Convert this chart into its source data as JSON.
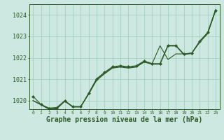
{
  "background_color": "#cce8e0",
  "grid_color": "#99ccbb",
  "line_color": "#2d5a27",
  "marker_color": "#2d5a27",
  "xlabel": "Graphe pression niveau de la mer (hPa)",
  "xlabel_fontsize": 7,
  "ytick_labels": [
    "1020",
    "1021",
    "1022",
    "1023",
    "1024"
  ],
  "ytick_vals": [
    1020,
    1021,
    1022,
    1023,
    1024
  ],
  "xtick_vals": [
    0,
    1,
    2,
    3,
    4,
    5,
    6,
    7,
    8,
    9,
    10,
    11,
    12,
    13,
    14,
    15,
    16,
    17,
    18,
    19,
    20,
    21,
    22,
    23
  ],
  "xlim": [
    -0.5,
    23.5
  ],
  "ylim": [
    1019.6,
    1024.5
  ],
  "series1_y": [
    1020.0,
    1019.82,
    1019.65,
    1019.68,
    1020.0,
    1019.72,
    1019.72,
    1020.3,
    1020.95,
    1021.25,
    1021.52,
    1021.57,
    1021.52,
    1021.57,
    1021.8,
    1021.7,
    1021.7,
    1022.55,
    1022.55,
    1022.15,
    1022.2,
    1022.75,
    1023.15,
    1024.25
  ],
  "series2_y": [
    1020.2,
    1019.82,
    1019.62,
    1019.65,
    1019.98,
    1019.72,
    1019.72,
    1020.35,
    1021.02,
    1021.32,
    1021.58,
    1021.63,
    1021.58,
    1021.63,
    1021.85,
    1021.73,
    1021.73,
    1022.58,
    1022.58,
    1022.18,
    1022.22,
    1022.78,
    1023.18,
    1024.22
  ],
  "series3_y": [
    1020.0,
    1019.8,
    1019.6,
    1019.62,
    1019.97,
    1019.7,
    1019.7,
    1020.32,
    1020.97,
    1021.3,
    1021.55,
    1021.6,
    1021.55,
    1021.6,
    1021.83,
    1021.72,
    1022.56,
    1021.92,
    1022.18,
    1022.18,
    1022.22,
    1022.72,
    1023.12,
    1024.18
  ]
}
